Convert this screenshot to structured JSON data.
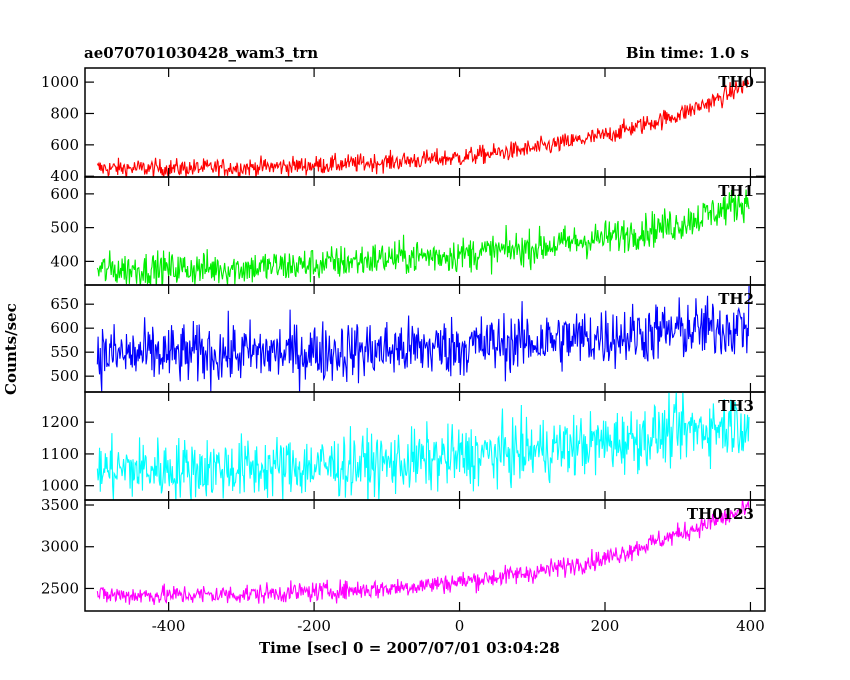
{
  "header": {
    "title_left": "ae070701030428_wam3_trn",
    "title_right": "Bin time: 1.0 s"
  },
  "axes": {
    "xlabel": "Time [sec] 0 = 2007/07/01 03:04:28",
    "ylabel": "Counts/sec"
  },
  "chart_data": {
    "type": "line",
    "title": "ae070701030428_wam3_trn",
    "subtitle": "Bin time: 1.0 s",
    "xlabel": "Time [sec] 0 = 2007/07/01 03:04:28",
    "ylabel": "Counts/sec",
    "xlim": [
      -515,
      420
    ],
    "x_ticks": [
      -400,
      -200,
      0,
      200,
      400
    ],
    "x_range_data": [
      -498,
      398
    ],
    "bin_time_s": 1.0,
    "grid": false,
    "layout": "5 stacked panels sharing x axis",
    "panels": [
      {
        "name": "TH0",
        "color": "#ff0000",
        "ylim": [
          395,
          1090
        ],
        "y_ticks": [
          400,
          600,
          800,
          1000
        ],
        "trend_x": [
          -498,
          -400,
          -300,
          -200,
          -100,
          0,
          100,
          200,
          300,
          360,
          398
        ],
        "trend_y": [
          450,
          450,
          455,
          470,
          490,
          520,
          575,
          660,
          790,
          900,
          1000
        ],
        "noise": 30
      },
      {
        "name": "TH1",
        "color": "#00ee00",
        "ylim": [
          330,
          650
        ],
        "y_ticks": [
          400,
          500,
          600
        ],
        "trend_x": [
          -498,
          -400,
          -300,
          -200,
          -100,
          0,
          100,
          200,
          300,
          398
        ],
        "trend_y": [
          375,
          378,
          380,
          390,
          410,
          420,
          440,
          470,
          510,
          580
        ],
        "noise": 26
      },
      {
        "name": "TH2",
        "color": "#0000ff",
        "ylim": [
          467,
          690
        ],
        "y_ticks": [
          500,
          550,
          600,
          650
        ],
        "trend_x": [
          -498,
          -400,
          -300,
          -200,
          -100,
          0,
          100,
          200,
          300,
          398
        ],
        "trend_y": [
          545,
          545,
          548,
          550,
          555,
          562,
          572,
          582,
          595,
          605
        ],
        "noise": 32
      },
      {
        "name": "TH3",
        "color": "#00ffff",
        "ylim": [
          955,
          1295
        ],
        "y_ticks": [
          1000,
          1100,
          1200
        ],
        "trend_x": [
          -498,
          -400,
          -300,
          -200,
          -100,
          0,
          100,
          200,
          300,
          398
        ],
        "trend_y": [
          1050,
          1052,
          1055,
          1060,
          1070,
          1090,
          1110,
          1135,
          1170,
          1200
        ],
        "noise": 50
      },
      {
        "name": "TH0123",
        "color": "#ff00ff",
        "ylim": [
          2230,
          3560
        ],
        "y_ticks": [
          2500,
          3000,
          3500
        ],
        "trend_x": [
          -498,
          -400,
          -300,
          -200,
          -100,
          0,
          100,
          200,
          300,
          398
        ],
        "trend_y": [
          2420,
          2420,
          2430,
          2460,
          2500,
          2580,
          2690,
          2860,
          3150,
          3450
        ],
        "noise": 60
      }
    ]
  }
}
